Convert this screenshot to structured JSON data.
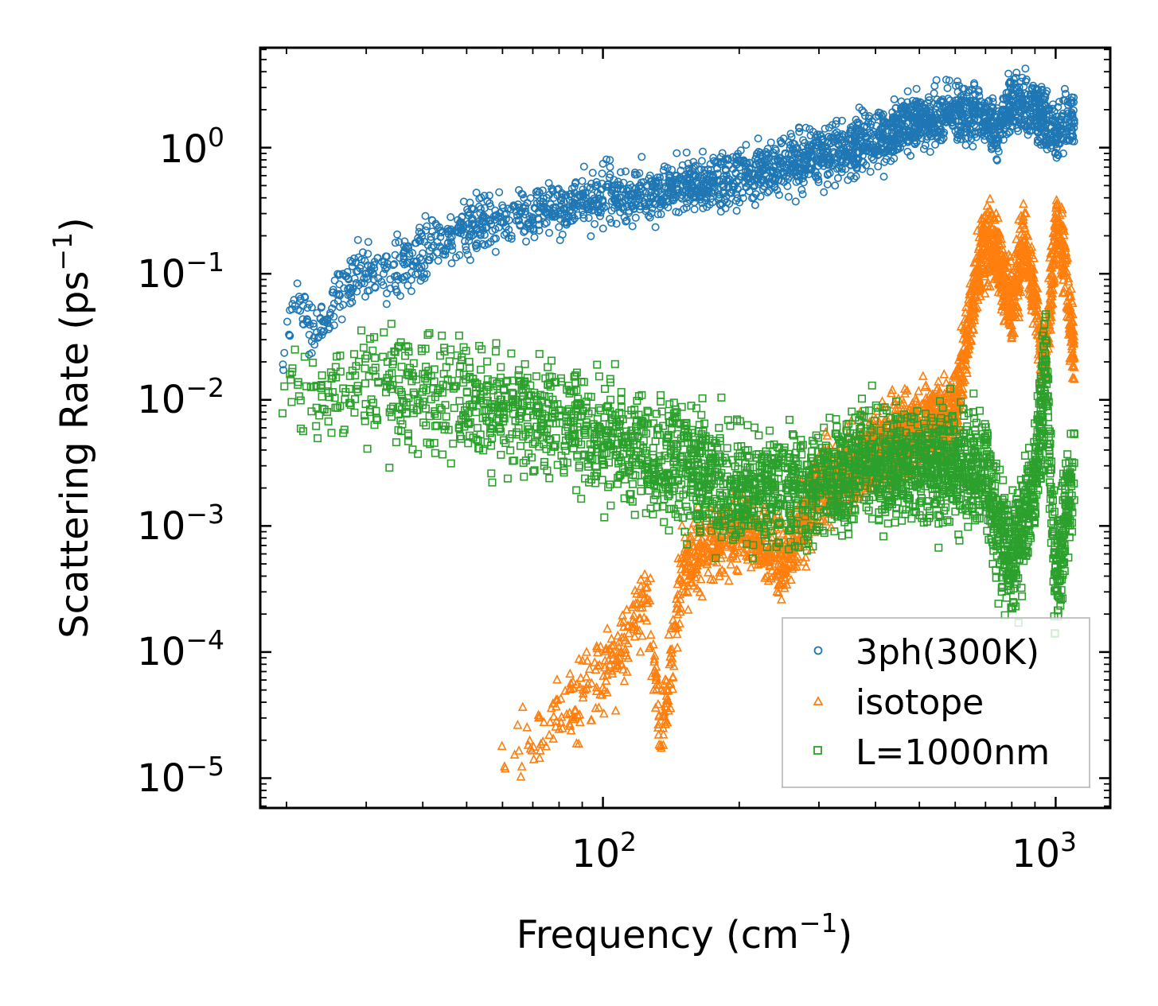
{
  "chart_data": {
    "type": "scatter",
    "title": "",
    "xlabel": "Frequency (cm",
    "xlabel_sup": "−1",
    "xlabel_close": ")",
    "ylabel": "Scattering Rate (ps",
    "ylabel_sup": "−1",
    "ylabel_close": ")",
    "xscale": "log",
    "yscale": "log",
    "xlim": [
      17.5,
      1320
    ],
    "ylim": [
      5.8e-06,
      6.2
    ],
    "x_ticks": [
      {
        "value": 100,
        "base": "10",
        "exp": "2"
      },
      {
        "value": 1000,
        "base": "10",
        "exp": "3"
      }
    ],
    "y_ticks": [
      {
        "value": 1,
        "base": "10",
        "exp": "0"
      },
      {
        "value": 0.1,
        "base": "10",
        "exp": "−1"
      },
      {
        "value": 0.01,
        "base": "10",
        "exp": "−2"
      },
      {
        "value": 0.001,
        "base": "10",
        "exp": "−3"
      },
      {
        "value": 0.0001,
        "base": "10",
        "exp": "−4"
      },
      {
        "value": 1e-05,
        "base": "10",
        "exp": "−5"
      }
    ],
    "legend_position": "lower-right",
    "series": [
      {
        "name": "3ph(300K)",
        "marker": "circle",
        "color": "#1f77b4",
        "trend_points": [
          [
            19.5,
            0.02
          ],
          [
            21,
            0.063
          ],
          [
            23,
            0.033
          ],
          [
            28,
            0.095
          ],
          [
            35,
            0.11
          ],
          [
            45,
            0.2
          ],
          [
            55,
            0.25
          ],
          [
            70,
            0.3
          ],
          [
            90,
            0.38
          ],
          [
            110,
            0.42
          ],
          [
            150,
            0.5
          ],
          [
            200,
            0.6
          ],
          [
            250,
            0.7
          ],
          [
            300,
            0.85
          ],
          [
            400,
            1.2
          ],
          [
            500,
            1.6
          ],
          [
            600,
            1.9
          ],
          [
            700,
            1.8
          ],
          [
            750,
            1.3
          ],
          [
            800,
            2.5
          ],
          [
            900,
            2.0
          ],
          [
            1000,
            1.3
          ],
          [
            1050,
            1.8
          ],
          [
            1100,
            1.6
          ]
        ],
        "note": "dense cloud of several thousand points between roughly 20 and 1100 cm−1"
      },
      {
        "name": "isotope",
        "marker": "triangle",
        "color": "#ff7f0e",
        "trend_points": [
          [
            57,
            1e-05
          ],
          [
            70,
            2e-05
          ],
          [
            90,
            5e-05
          ],
          [
            110,
            0.0001
          ],
          [
            125,
            0.0003
          ],
          [
            135,
            2e-05
          ],
          [
            150,
            0.0005
          ],
          [
            200,
            0.001
          ],
          [
            250,
            0.0005
          ],
          [
            300,
            0.002
          ],
          [
            400,
            0.004
          ],
          [
            500,
            0.006
          ],
          [
            600,
            0.008
          ],
          [
            650,
            0.05
          ],
          [
            700,
            0.2
          ],
          [
            740,
            0.15
          ],
          [
            800,
            0.05
          ],
          [
            850,
            0.2
          ],
          [
            950,
            0.02
          ],
          [
            1000,
            0.25
          ],
          [
            1050,
            0.12
          ],
          [
            1100,
            0.02
          ]
        ],
        "note": "dense cloud rising from about 1e-5 at 57 cm−1 to about 0.3 near 1000 cm−1"
      },
      {
        "name": "L=1000nm",
        "marker": "square",
        "color": "#2ca02c",
        "trend_points": [
          [
            19.5,
            0.0105
          ],
          [
            25,
            0.011
          ],
          [
            30,
            0.012
          ],
          [
            40,
            0.011
          ],
          [
            50,
            0.01
          ],
          [
            70,
            0.008
          ],
          [
            100,
            0.005
          ],
          [
            150,
            0.003
          ],
          [
            200,
            0.002
          ],
          [
            300,
            0.002
          ],
          [
            400,
            0.003
          ],
          [
            500,
            0.003
          ],
          [
            600,
            0.003
          ],
          [
            700,
            0.003
          ],
          [
            740,
            0.001
          ],
          [
            800,
            0.0005
          ],
          [
            900,
            0.002
          ],
          [
            950,
            0.02
          ],
          [
            1000,
            0.0003
          ],
          [
            1100,
            0.003
          ]
        ],
        "note": "dense cloud near 1e-2 at low frequency spreading down to about 1e-4 above 100 cm−1"
      }
    ]
  }
}
